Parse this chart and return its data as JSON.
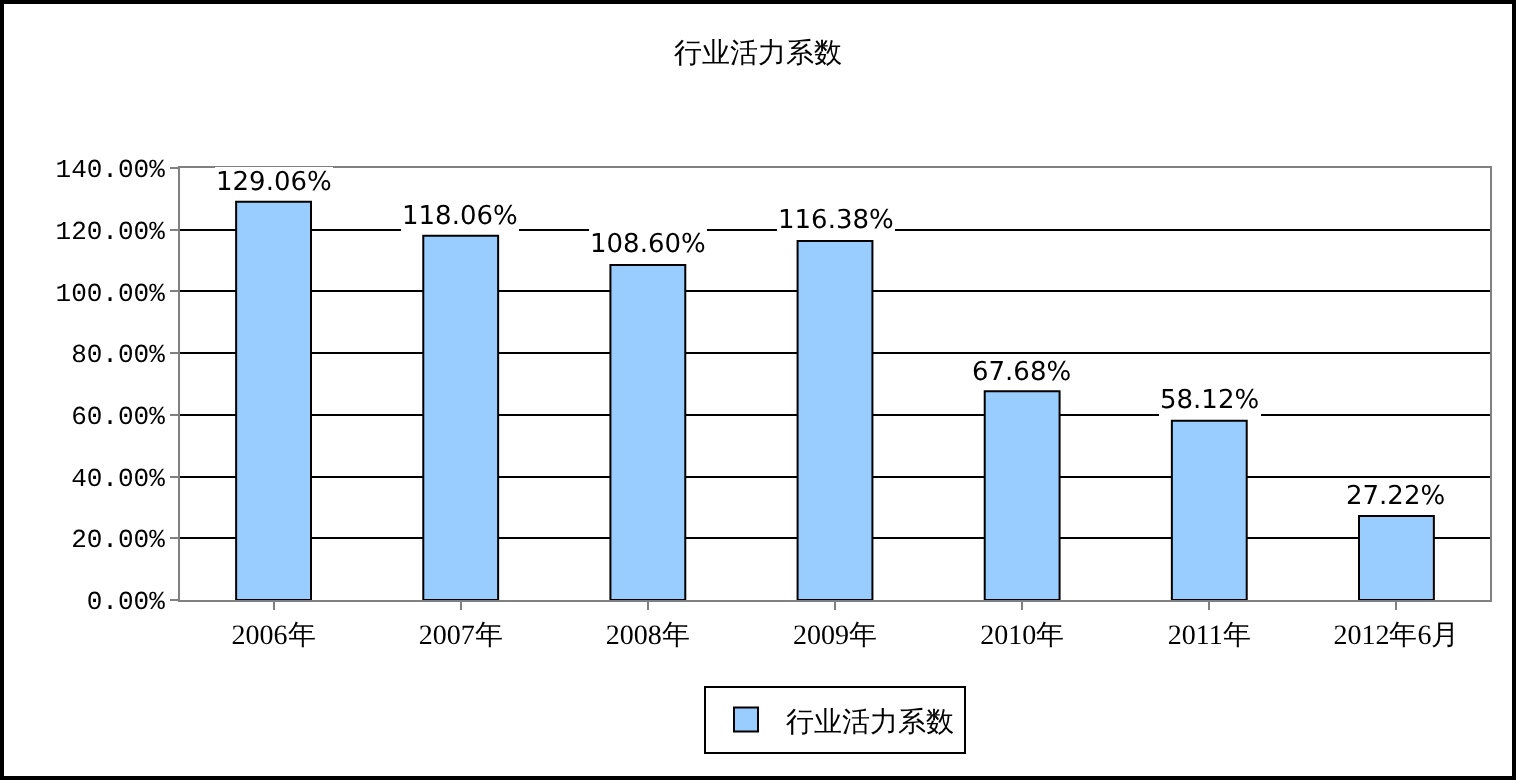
{
  "chart_data": {
    "type": "bar",
    "title": "行业活力系数",
    "categories": [
      "2006年",
      "2007年",
      "2008年",
      "2009年",
      "2010年",
      "2011年",
      "2012年6月"
    ],
    "series": [
      {
        "name": "行业活力系数",
        "color": "#99ccff",
        "values": [
          129.06,
          118.06,
          108.6,
          116.38,
          67.68,
          58.12,
          27.22
        ],
        "value_labels": [
          "129.06%",
          "118.06%",
          "108.60%",
          "116.38%",
          "67.68%",
          "58.12%",
          "27.22%"
        ]
      }
    ],
    "ylim": [
      0,
      140
    ],
    "yticks": [
      {
        "value": 0,
        "label": "0.00%"
      },
      {
        "value": 20,
        "label": "20.00%"
      },
      {
        "value": 40,
        "label": "40.00%"
      },
      {
        "value": 60,
        "label": "60.00%"
      },
      {
        "value": 80,
        "label": "80.00%"
      },
      {
        "value": 100,
        "label": "100.00%"
      },
      {
        "value": 120,
        "label": "120.00%"
      },
      {
        "value": 140,
        "label": "140.00%"
      }
    ],
    "grid": "y",
    "legend": "bottom"
  }
}
